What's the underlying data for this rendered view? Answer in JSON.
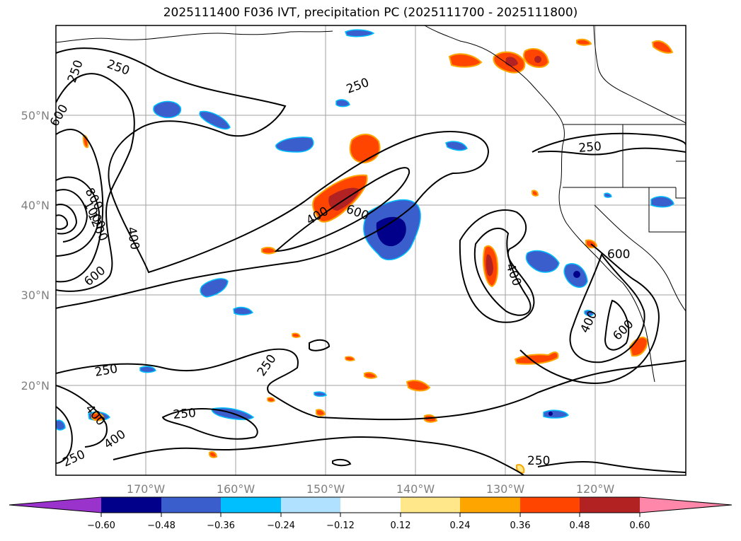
{
  "title": "2025111400 F036 IVT, precipitation PC (2025111700 - 2025111800)",
  "map": {
    "lat_ticks": [
      "50°N",
      "40°N",
      "30°N",
      "20°N"
    ],
    "lon_ticks": [
      "170°W",
      "160°W",
      "150°W",
      "140°W",
      "130°W",
      "120°W"
    ],
    "contour_levels": [
      "250",
      "400",
      "600",
      "800",
      "1000",
      "1200"
    ],
    "contour_labels": [
      "250",
      "250",
      "250",
      "600",
      "800",
      "1000",
      "1200",
      "400",
      "600",
      "400",
      "600",
      "250",
      "400",
      "600",
      "250",
      "250",
      "250",
      "400",
      "400",
      "250",
      "250",
      "400",
      "600",
      "250"
    ]
  },
  "colorbar": {
    "ticks": [
      "−0.60",
      "−0.48",
      "−0.36",
      "−0.24",
      "−0.12",
      "0.12",
      "0.24",
      "0.36",
      "0.48",
      "0.60"
    ],
    "colors": [
      "#9933cc",
      "#00008b",
      "#3a5fcd",
      "#00bfff",
      "#b0e2ff",
      "#ffffff",
      "#ffe78a",
      "#ffa500",
      "#ff4500",
      "#b22222",
      "#ff88aa"
    ]
  }
}
